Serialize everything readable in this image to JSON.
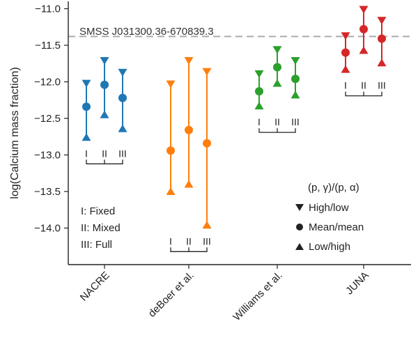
{
  "chart_data": {
    "type": "scatter",
    "title": "",
    "xlabel": "",
    "ylabel": "log(Calcium mass fraction)",
    "ylim": [
      -14.5,
      -10.9
    ],
    "yticks": [
      -14.0,
      -13.5,
      -13.0,
      -12.5,
      -12.0,
      -11.5,
      -11.0
    ],
    "ytick_labels": [
      "−14.0",
      "−13.5",
      "−13.0",
      "−12.5",
      "−12.0",
      "−11.5",
      "−11.0"
    ],
    "categories": [
      "NACRE",
      "deBoer et al.",
      "Williams et al.",
      "JUNA"
    ],
    "variants": [
      "I",
      "II",
      "III"
    ],
    "reference_line": {
      "value": -11.38,
      "label": "SMSS  J031300.36-670839.3"
    },
    "series": [
      {
        "name": "NACRE",
        "color": "#1f77b4",
        "points": [
          {
            "variant": "I",
            "high_low": -12.02,
            "mean_mean": -12.34,
            "low_high": -12.76
          },
          {
            "variant": "II",
            "high_low": -11.71,
            "mean_mean": -12.04,
            "low_high": -12.45
          },
          {
            "variant": "III",
            "high_low": -11.87,
            "mean_mean": -12.22,
            "low_high": -12.64
          }
        ]
      },
      {
        "name": "deBoer et al.",
        "color": "#ff7f0e",
        "points": [
          {
            "variant": "I",
            "high_low": -12.03,
            "mean_mean": -12.94,
            "low_high": -13.5
          },
          {
            "variant": "II",
            "high_low": -11.71,
            "mean_mean": -12.66,
            "low_high": -13.4
          },
          {
            "variant": "III",
            "high_low": -11.86,
            "mean_mean": -12.84,
            "low_high": -13.96
          }
        ]
      },
      {
        "name": "Williams et al.",
        "color": "#2ca02c",
        "points": [
          {
            "variant": "I",
            "high_low": -11.89,
            "mean_mean": -12.13,
            "low_high": -12.33
          },
          {
            "variant": "II",
            "high_low": -11.56,
            "mean_mean": -11.8,
            "low_high": -12.02
          },
          {
            "variant": "III",
            "high_low": -11.71,
            "mean_mean": -11.96,
            "low_high": -12.18
          }
        ]
      },
      {
        "name": "JUNA",
        "color": "#d62728",
        "points": [
          {
            "variant": "I",
            "high_low": -11.37,
            "mean_mean": -11.6,
            "low_high": -11.83
          },
          {
            "variant": "II",
            "high_low": -11.01,
            "mean_mean": -11.28,
            "low_high": -11.57
          },
          {
            "variant": "III",
            "high_low": -11.16,
            "mean_mean": -11.41,
            "low_high": -11.74
          }
        ]
      }
    ],
    "legend_markers": {
      "title": "(p, γ)/(p, α)",
      "items": [
        {
          "marker": "triangle-down",
          "label": "High/low"
        },
        {
          "marker": "circle",
          "label": "Mean/mean"
        },
        {
          "marker": "triangle-up",
          "label": "Low/high"
        }
      ]
    },
    "legend_variants": [
      "I: Fixed",
      "II: Mixed",
      "III: Full"
    ]
  }
}
